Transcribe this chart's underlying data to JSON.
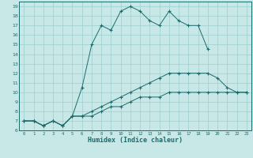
{
  "xlabel": "Humidex (Indice chaleur)",
  "background_color": "#c8e8e8",
  "grid_color": "#9ecece",
  "line_color": "#1a6b6b",
  "xlim": [
    -0.5,
    23.5
  ],
  "ylim": [
    6,
    19.5
  ],
  "xticks": [
    0,
    1,
    2,
    3,
    4,
    5,
    6,
    7,
    8,
    9,
    10,
    11,
    12,
    13,
    14,
    15,
    16,
    17,
    18,
    19,
    20,
    21,
    22,
    23
  ],
  "yticks": [
    6,
    7,
    8,
    9,
    10,
    11,
    12,
    13,
    14,
    15,
    16,
    17,
    18,
    19
  ],
  "line1_x": [
    0,
    1,
    2,
    3,
    4,
    5,
    6,
    7,
    8,
    9,
    10,
    11,
    12,
    13,
    14,
    15,
    16,
    17,
    18,
    19
  ],
  "line1_y": [
    7.0,
    7.0,
    6.5,
    7.0,
    6.5,
    7.5,
    10.5,
    15.0,
    17.0,
    16.5,
    18.5,
    19.0,
    18.5,
    17.5,
    17.0,
    18.5,
    17.5,
    17.0,
    17.0,
    14.5
  ],
  "line2_x": [
    0,
    1,
    2,
    3,
    4,
    5,
    6,
    7,
    8,
    9,
    10,
    11,
    12,
    13,
    14,
    15,
    16,
    17,
    18,
    19,
    20,
    21,
    22,
    23
  ],
  "line2_y": [
    7.0,
    7.0,
    6.5,
    7.0,
    6.5,
    7.5,
    7.5,
    8.0,
    8.5,
    9.0,
    9.5,
    10.0,
    10.5,
    11.0,
    11.5,
    12.0,
    12.0,
    12.0,
    12.0,
    12.0,
    11.5,
    10.5,
    10.0,
    10.0
  ],
  "line3_x": [
    0,
    1,
    2,
    3,
    4,
    5,
    6,
    7,
    8,
    9,
    10,
    11,
    12,
    13,
    14,
    15,
    16,
    17,
    18,
    19,
    20,
    21,
    22,
    23
  ],
  "line3_y": [
    7.0,
    7.0,
    6.5,
    7.0,
    6.5,
    7.5,
    7.5,
    7.5,
    8.0,
    8.5,
    8.5,
    9.0,
    9.5,
    9.5,
    9.5,
    10.0,
    10.0,
    10.0,
    10.0,
    10.0,
    10.0,
    10.0,
    10.0,
    10.0
  ]
}
